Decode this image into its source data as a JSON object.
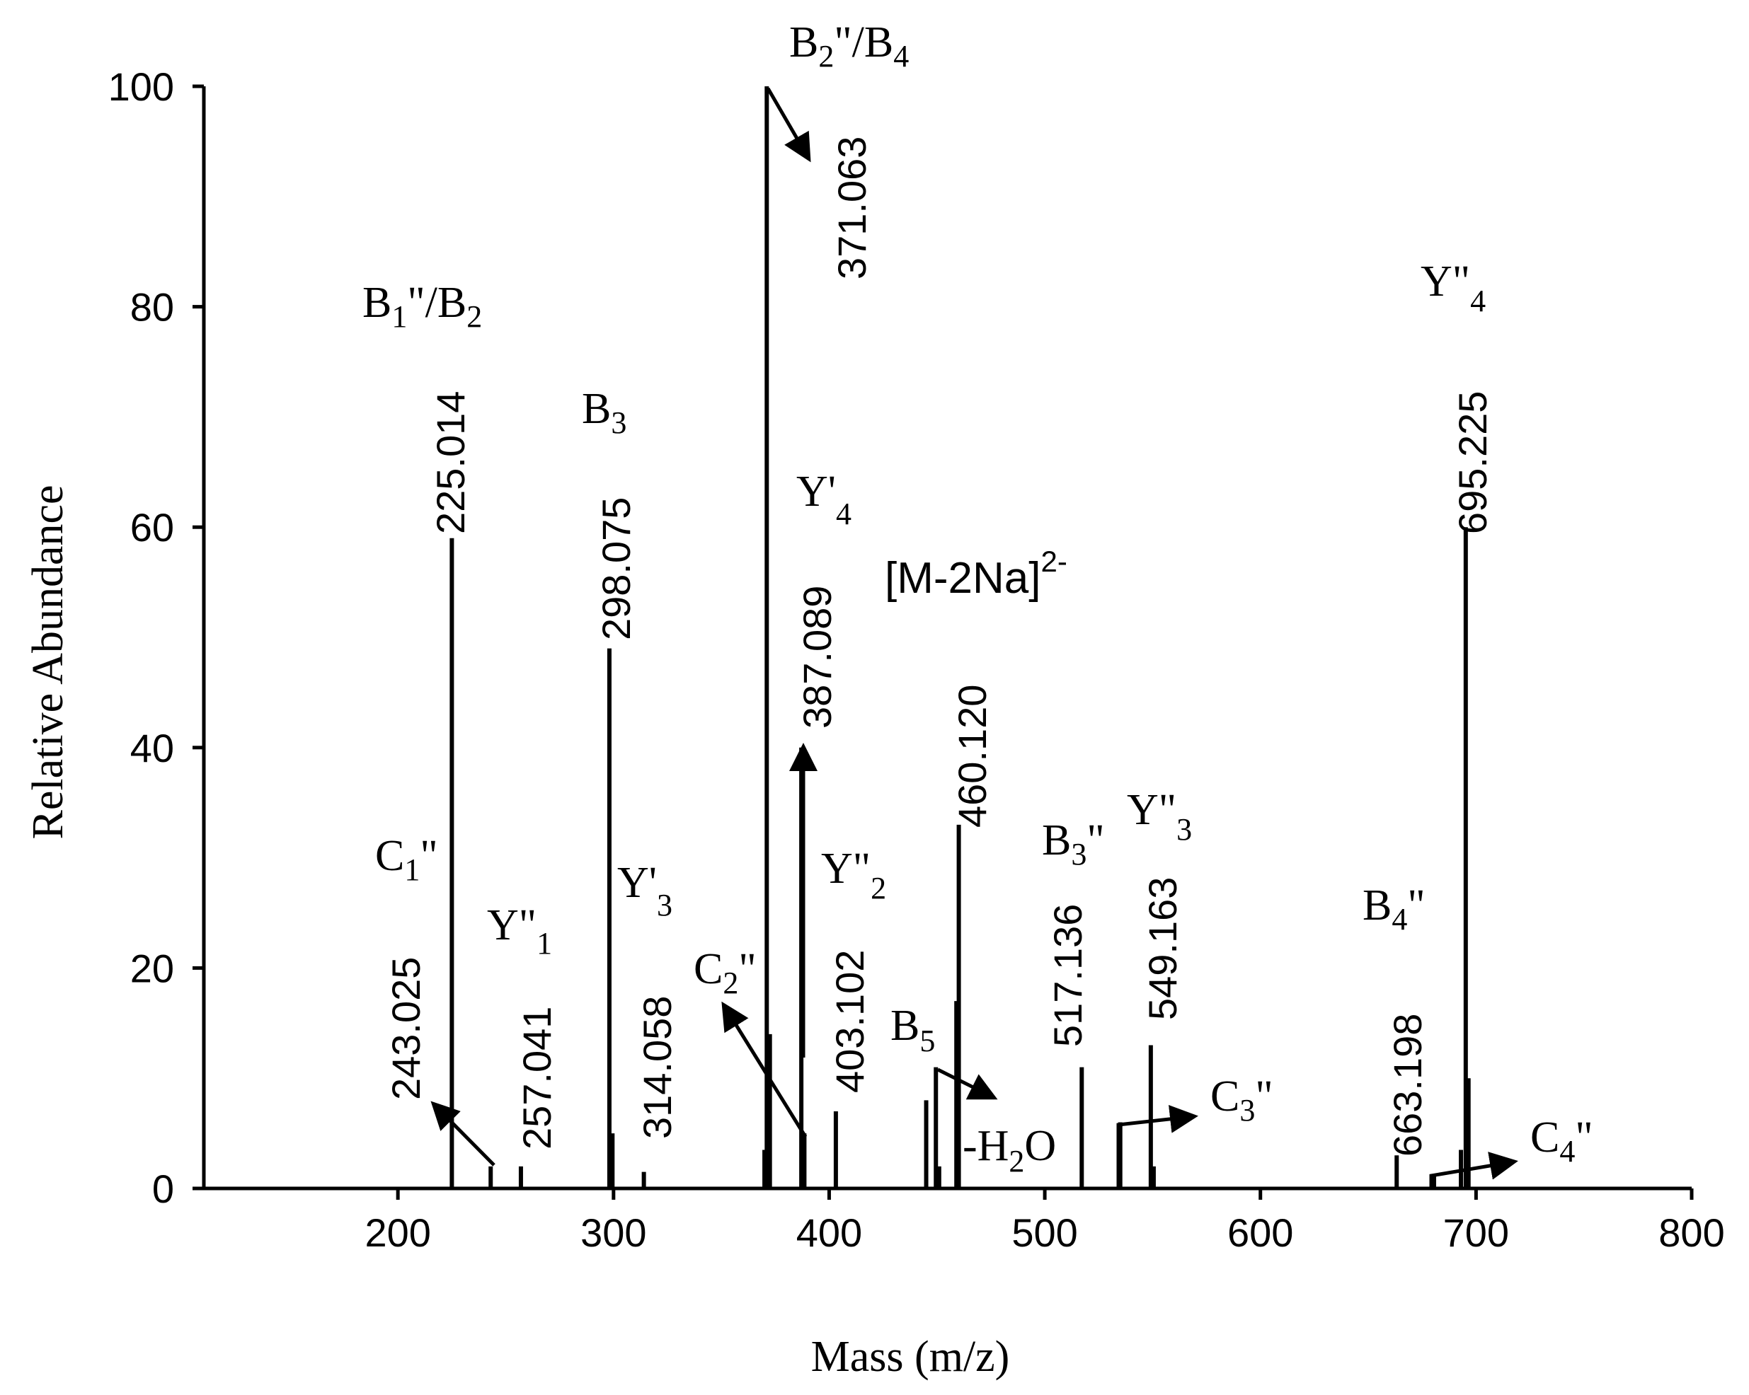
{
  "chart_data": {
    "type": "bar",
    "xlabel": "Mass (m/z)",
    "ylabel": "Relative Abundance",
    "xlim": [
      110,
      800
    ],
    "ylim": [
      0,
      100
    ],
    "xticks": [
      "200",
      "300",
      "400",
      "500",
      "600",
      "700",
      "800"
    ],
    "yticks": [
      "0",
      "20",
      "40",
      "60",
      "80",
      "100"
    ],
    "peaks": [
      {
        "mz": 225.014,
        "intensity": 59
      },
      {
        "mz": 243.025,
        "intensity": 2
      },
      {
        "mz": 257.041,
        "intensity": 2
      },
      {
        "mz": 298.075,
        "intensity": 49
      },
      {
        "mz": 299.5,
        "intensity": 5
      },
      {
        "mz": 314.058,
        "intensity": 1.5
      },
      {
        "mz": 370.0,
        "intensity": 3.5
      },
      {
        "mz": 371.063,
        "intensity": 100
      },
      {
        "mz": 372.5,
        "intensity": 14
      },
      {
        "mz": 387.089,
        "intensity": 40
      },
      {
        "mz": 388.5,
        "intensity": 5
      },
      {
        "mz": 403.102,
        "intensity": 7
      },
      {
        "mz": 445.0,
        "intensity": 8
      },
      {
        "mz": 449.5,
        "intensity": 11
      },
      {
        "mz": 451.0,
        "intensity": 2
      },
      {
        "mz": 459.0,
        "intensity": 17
      },
      {
        "mz": 460.12,
        "intensity": 33
      },
      {
        "mz": 517.136,
        "intensity": 11
      },
      {
        "mz": 535.0,
        "intensity": 6
      },
      {
        "mz": 549.163,
        "intensity": 13
      },
      {
        "mz": 550.5,
        "intensity": 2
      },
      {
        "mz": 663.198,
        "intensity": 3
      },
      {
        "mz": 680.5,
        "intensity": 1.2
      },
      {
        "mz": 693.0,
        "intensity": 3.5
      },
      {
        "mz": 695.225,
        "intensity": 60
      },
      {
        "mz": 696.5,
        "intensity": 10
      }
    ],
    "mass_labels": [
      "225.014",
      "243.025",
      "257.041",
      "298.075",
      "314.058",
      "371.063",
      "387.089",
      "403.102",
      "460.120",
      "517.136",
      "549.163",
      "663.198",
      "695.225"
    ],
    "ion_labels": [
      "B1\"/B2",
      "C1\"",
      "Y\"1",
      "B3",
      "Y'3",
      "B2\"/B4",
      "C2\"",
      "Y'4",
      "Y\"2",
      "[M-2Na]2-",
      "B5",
      "-H2O",
      "B3\"",
      "Y\"3",
      "C3\"",
      "B4\"",
      "Y\"4",
      "C4\""
    ]
  }
}
